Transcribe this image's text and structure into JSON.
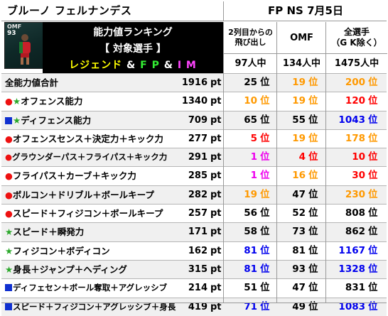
{
  "header": {
    "player_name": "ブルーノ フェルナンデス",
    "edition": "FP NS 7月5日"
  },
  "card": {
    "position": "OMF",
    "rating": "93",
    "primary_color": "#0e2827"
  },
  "banner": {
    "line1": "能力値ランキング",
    "line2": "【 対象選手 】",
    "line3_part1": "レジェンド",
    "line3_amp1": "&",
    "line3_part2": "F P",
    "line3_amp2": "&",
    "line3_part3": "I M"
  },
  "columns": [
    {
      "header": "2列目からの\n飛び出し",
      "count": "97人中"
    },
    {
      "header": "OMF",
      "count": "134人中"
    },
    {
      "header": "全選手\n（G K除く）",
      "count": "1475人中"
    }
  ],
  "colors": {
    "rank_orange": "#ff9900",
    "rank_red": "#ff0000",
    "rank_blue": "#0000ee",
    "rank_magenta": "#ee00ee",
    "rank_black": "#000000",
    "bullet_red": "#ee1111",
    "bullet_blue": "#1030d0",
    "star_green": "#2aa82a"
  },
  "unit_pt": "pt",
  "unit_rank": "位",
  "rows": [
    {
      "icons": [],
      "label": "全能力値合計",
      "value": "1916",
      "ranks": [
        {
          "n": "25",
          "c": "#000000"
        },
        {
          "n": "19",
          "c": "#ff9900"
        },
        {
          "n": "200",
          "c": "#ff9900"
        }
      ]
    },
    {
      "icons": [
        "red-circle",
        "green-star"
      ],
      "label": "オフェンス能力",
      "value": "1340",
      "ranks": [
        {
          "n": "10",
          "c": "#ff9900"
        },
        {
          "n": "19",
          "c": "#ff9900"
        },
        {
          "n": "120",
          "c": "#ff0000"
        }
      ]
    },
    {
      "icons": [
        "blue-square",
        "green-star"
      ],
      "label": "ディフェンス能力",
      "value": "709",
      "ranks": [
        {
          "n": "65",
          "c": "#000000"
        },
        {
          "n": "55",
          "c": "#000000"
        },
        {
          "n": "1043",
          "c": "#0000ee"
        }
      ]
    },
    {
      "icons": [
        "red-circle"
      ],
      "label": "オフェンスセンス＋決定力＋キック力",
      "value": "277",
      "ranks": [
        {
          "n": "5",
          "c": "#ff0000"
        },
        {
          "n": "19",
          "c": "#ff9900"
        },
        {
          "n": "178",
          "c": "#ff9900"
        }
      ]
    },
    {
      "icons": [
        "red-circle"
      ],
      "label": "グラウンダーパス＋フライパス＋キック力",
      "value": "291",
      "ranks": [
        {
          "n": "1",
          "c": "#ee00ee"
        },
        {
          "n": "4",
          "c": "#ff0000"
        },
        {
          "n": "10",
          "c": "#ff0000"
        }
      ]
    },
    {
      "icons": [
        "red-circle"
      ],
      "label": "フライパス＋カーブ＋キック力",
      "value": "285",
      "ranks": [
        {
          "n": "1",
          "c": "#ee00ee"
        },
        {
          "n": "16",
          "c": "#ff9900"
        },
        {
          "n": "30",
          "c": "#ff0000"
        }
      ]
    },
    {
      "icons": [
        "red-circle"
      ],
      "label": "ボルコン＋ドリブル＋ボールキープ",
      "value": "282",
      "ranks": [
        {
          "n": "19",
          "c": "#ff9900"
        },
        {
          "n": "47",
          "c": "#000000"
        },
        {
          "n": "230",
          "c": "#ff9900"
        }
      ]
    },
    {
      "icons": [
        "red-circle"
      ],
      "label": "スピード＋フィジコン＋ボールキープ",
      "value": "257",
      "ranks": [
        {
          "n": "56",
          "c": "#000000"
        },
        {
          "n": "52",
          "c": "#000000"
        },
        {
          "n": "808",
          "c": "#000000"
        }
      ]
    },
    {
      "icons": [
        "green-star"
      ],
      "label": "スピード＋瞬発力",
      "value": "171",
      "ranks": [
        {
          "n": "58",
          "c": "#000000"
        },
        {
          "n": "73",
          "c": "#000000"
        },
        {
          "n": "862",
          "c": "#000000"
        }
      ]
    },
    {
      "icons": [
        "green-star"
      ],
      "label": "フィジコン＋ボディコン",
      "value": "162",
      "ranks": [
        {
          "n": "81",
          "c": "#0000ee"
        },
        {
          "n": "81",
          "c": "#000000"
        },
        {
          "n": "1167",
          "c": "#0000ee"
        }
      ]
    },
    {
      "icons": [
        "green-star"
      ],
      "label": "身長＋ジャンプ＋ヘディング",
      "value": "315",
      "ranks": [
        {
          "n": "81",
          "c": "#0000ee"
        },
        {
          "n": "93",
          "c": "#000000"
        },
        {
          "n": "1328",
          "c": "#0000ee"
        }
      ]
    },
    {
      "icons": [
        "blue-square"
      ],
      "label": "ディフェセン＋ボール奪取＋アグレッシブ",
      "value": "214",
      "ranks": [
        {
          "n": "51",
          "c": "#000000"
        },
        {
          "n": "47",
          "c": "#000000"
        },
        {
          "n": "831",
          "c": "#000000"
        }
      ]
    },
    {
      "icons": [
        "blue-square"
      ],
      "label": "スピード＋フィジコン＋アグレッシブ＋身長",
      "value": "419",
      "ranks": [
        {
          "n": "71",
          "c": "#0000ee"
        },
        {
          "n": "49",
          "c": "#000000"
        },
        {
          "n": "1083",
          "c": "#0000ee"
        }
      ]
    }
  ]
}
